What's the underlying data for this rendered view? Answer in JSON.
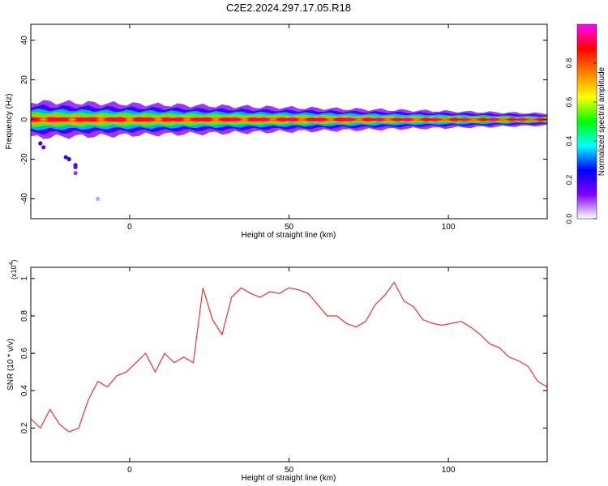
{
  "title": "C2E2.2024.297.17.05.R18",
  "chart_data": [
    {
      "type": "heatmap",
      "xlabel": "Height of straight line (km)",
      "ylabel": "Frequency (Hz)",
      "xlim": [
        -31,
        131
      ],
      "ylim": [
        -50,
        48
      ],
      "xticks": [
        0,
        50,
        100
      ],
      "yticks": [
        -40,
        -20,
        0,
        20,
        40
      ],
      "grid": false,
      "colorbar": {
        "label": "Normalized spectral amplitude",
        "range": [
          0.0,
          1.0
        ],
        "ticks": [
          0.0,
          0.2,
          0.4,
          0.6,
          0.8
        ],
        "colors": [
          "#ffffff",
          "#8000ff",
          "#0000ff",
          "#00ffff",
          "#00ff00",
          "#ffff00",
          "#ff8000",
          "#ff0000",
          "#ff00ff"
        ]
      },
      "main_band": {
        "center_freq": 0,
        "x_range": [
          -31,
          131
        ],
        "peak_amplitude": 0.95,
        "halfwidth_hz_at_start": 9,
        "halfwidth_hz_at_end": 3
      },
      "scatter_points": [
        {
          "x": -28,
          "y": -12,
          "amp": 0.2
        },
        {
          "x": -27,
          "y": -14,
          "amp": 0.15
        },
        {
          "x": -25,
          "y": -8,
          "amp": 0.1
        },
        {
          "x": -20,
          "y": -19,
          "amp": 0.2
        },
        {
          "x": -19,
          "y": -20,
          "amp": 0.2
        },
        {
          "x": -17,
          "y": -23,
          "amp": 0.2
        },
        {
          "x": -17,
          "y": -24,
          "amp": 0.15
        },
        {
          "x": -17,
          "y": -27,
          "amp": 0.1
        },
        {
          "x": -10,
          "y": -40,
          "amp": 0.05
        }
      ]
    },
    {
      "type": "line",
      "xlabel": "Height of straight line (km)",
      "ylabel": "SNR (10 * v/v)",
      "y_multiplier": "(x10",
      "y_multiplier_exp": "4",
      "y_multiplier_close": ")",
      "xlim": [
        -31,
        131
      ],
      "ylim": [
        0.02,
        1.06
      ],
      "xticks": [
        0,
        50,
        100
      ],
      "yticks": [
        0.2,
        0.4,
        0.6,
        0.8,
        1.0
      ],
      "grid": false,
      "series": [
        {
          "color": "#ee3333",
          "x": [
            -31,
            -28,
            -25,
            -22,
            -19,
            -16,
            -13,
            -10,
            -7,
            -4,
            -1,
            2,
            5,
            8,
            11,
            14,
            17,
            20,
            23,
            26,
            29,
            32,
            35,
            38,
            41,
            44,
            47,
            50,
            53,
            56,
            59,
            62,
            65,
            68,
            71,
            74,
            77,
            80,
            83,
            86,
            89,
            92,
            95,
            98,
            101,
            104,
            107,
            110,
            113,
            116,
            119,
            122,
            125,
            128,
            131
          ],
          "y": [
            0.25,
            0.2,
            0.3,
            0.22,
            0.18,
            0.2,
            0.35,
            0.45,
            0.42,
            0.48,
            0.5,
            0.55,
            0.6,
            0.5,
            0.6,
            0.55,
            0.58,
            0.55,
            0.95,
            0.78,
            0.7,
            0.9,
            0.95,
            0.92,
            0.9,
            0.93,
            0.92,
            0.95,
            0.94,
            0.92,
            0.86,
            0.8,
            0.8,
            0.76,
            0.74,
            0.77,
            0.86,
            0.91,
            0.98,
            0.88,
            0.85,
            0.78,
            0.76,
            0.75,
            0.76,
            0.77,
            0.74,
            0.7,
            0.65,
            0.63,
            0.58,
            0.56,
            0.53,
            0.45,
            0.42
          ]
        }
      ]
    }
  ]
}
